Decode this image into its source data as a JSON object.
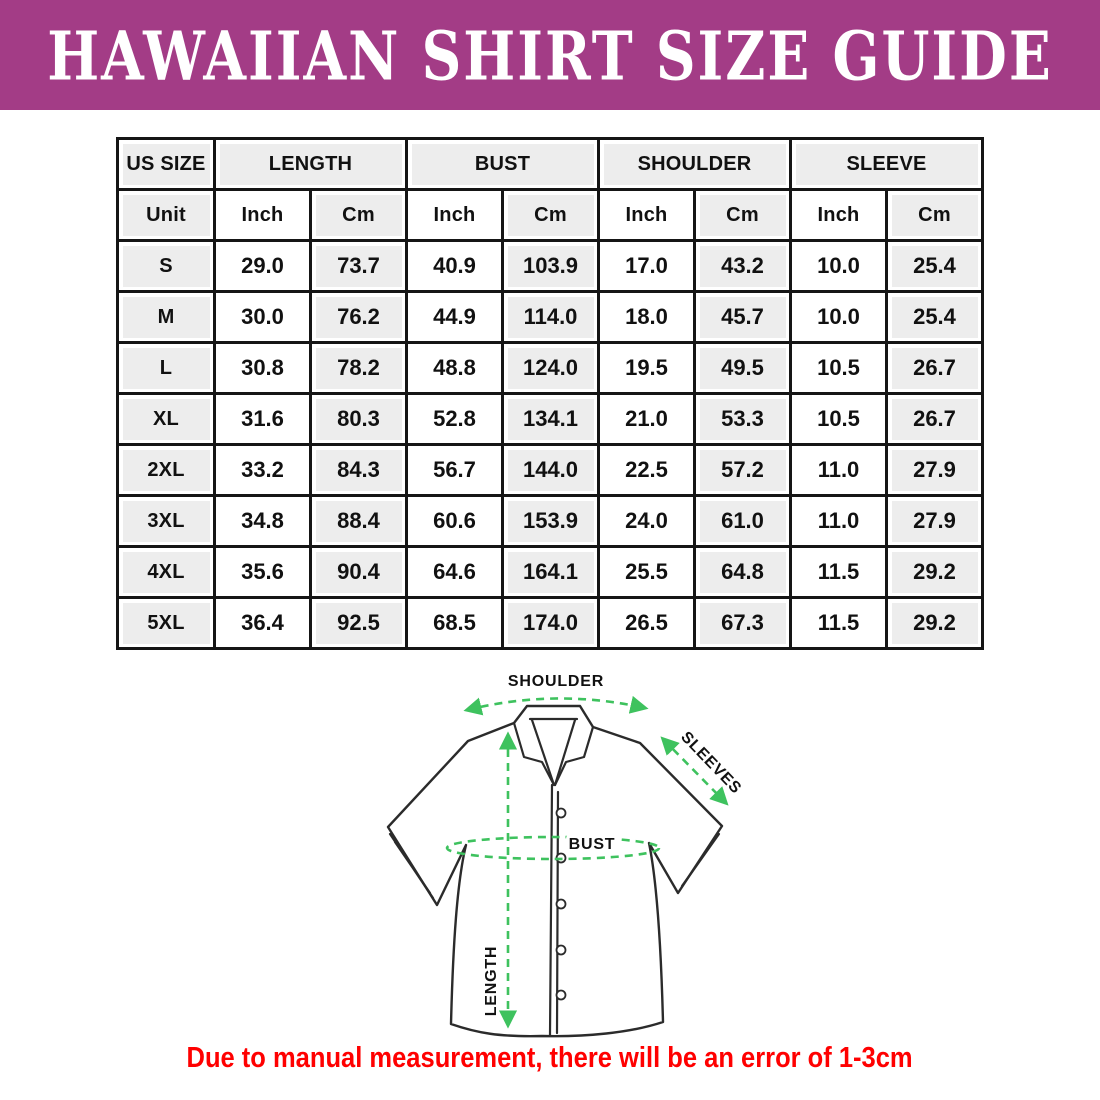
{
  "banner": {
    "title": "HAWAIIAN SHIRT SIZE GUIDE",
    "bg_color": "#A33C86",
    "text_color": "#FFFFFF"
  },
  "size_table": {
    "group_headers": [
      {
        "label": "US SIZE",
        "span": 1
      },
      {
        "label": "LENGTH",
        "span": 2
      },
      {
        "label": "BUST",
        "span": 2
      },
      {
        "label": "SHOULDER",
        "span": 2
      },
      {
        "label": "SLEEVE",
        "span": 2
      }
    ],
    "unit_row": [
      "Unit",
      "Inch",
      "Cm",
      "Inch",
      "Cm",
      "Inch",
      "Cm",
      "Inch",
      "Cm"
    ],
    "rows": [
      {
        "size": "S",
        "values": [
          "29.0",
          "73.7",
          "40.9",
          "103.9",
          "17.0",
          "43.2",
          "10.0",
          "25.4"
        ]
      },
      {
        "size": "M",
        "values": [
          "30.0",
          "76.2",
          "44.9",
          "114.0",
          "18.0",
          "45.7",
          "10.0",
          "25.4"
        ]
      },
      {
        "size": "L",
        "values": [
          "30.8",
          "78.2",
          "48.8",
          "124.0",
          "19.5",
          "49.5",
          "10.5",
          "26.7"
        ]
      },
      {
        "size": "XL",
        "values": [
          "31.6",
          "80.3",
          "52.8",
          "134.1",
          "21.0",
          "53.3",
          "10.5",
          "26.7"
        ]
      },
      {
        "size": "2XL",
        "values": [
          "33.2",
          "84.3",
          "56.7",
          "144.0",
          "22.5",
          "57.2",
          "11.0",
          "27.9"
        ]
      },
      {
        "size": "3XL",
        "values": [
          "34.8",
          "88.4",
          "60.6",
          "153.9",
          "24.0",
          "61.0",
          "11.0",
          "27.9"
        ]
      },
      {
        "size": "4XL",
        "values": [
          "35.6",
          "90.4",
          "64.6",
          "164.1",
          "25.5",
          "64.8",
          "11.5",
          "29.2"
        ]
      },
      {
        "size": "5XL",
        "values": [
          "36.4",
          "92.5",
          "68.5",
          "174.0",
          "26.5",
          "67.3",
          "11.5",
          "29.2"
        ]
      }
    ],
    "colors": {
      "cell_gray": "#EDEDED",
      "border": "#151515"
    }
  },
  "diagram": {
    "shoulder_label": "SHOULDER",
    "sleeves_label": "SLEEVES",
    "bust_label": "BUST",
    "length_label": "LENGTH",
    "arrow_color": "#3EC25E",
    "outline_color": "#2B2B2B"
  },
  "footer": {
    "note": "Due to manual measurement, there will be an error of 1-3cm",
    "color": "#FF0000"
  }
}
